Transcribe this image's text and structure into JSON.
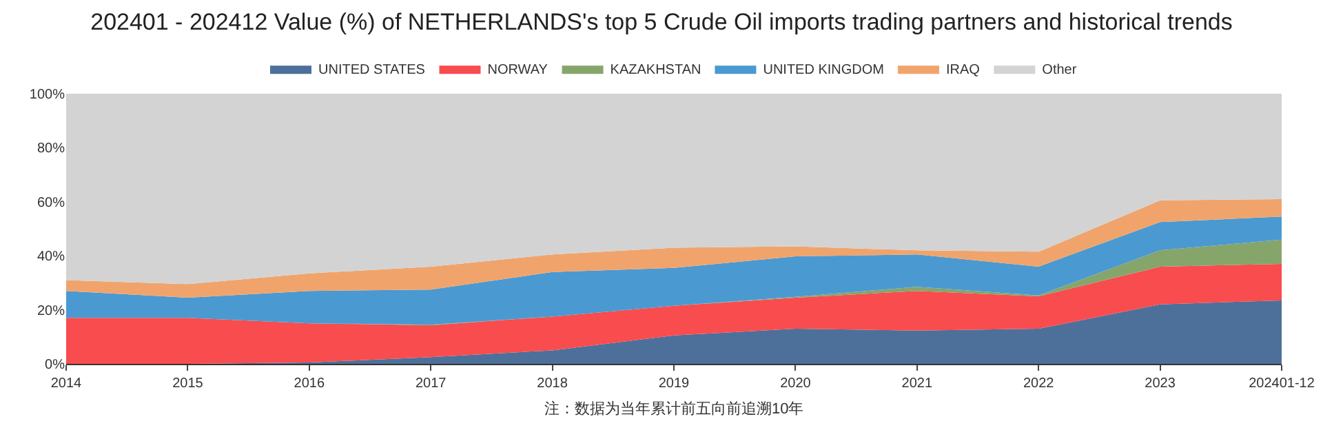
{
  "chart_data": {
    "type": "area",
    "stacked": true,
    "title": "202401 - 202412 Value (%) of NETHERLANDS's top 5 Crude Oil imports trading partners and historical trends",
    "categories": [
      "2014",
      "2015",
      "2016",
      "2017",
      "2018",
      "2019",
      "2020",
      "2021",
      "2022",
      "2023",
      "202401-12"
    ],
    "series": [
      {
        "name": "UNITED STATES",
        "color": "#4d709a",
        "values": [
          0,
          0,
          0.5,
          2.5,
          5,
          10.5,
          13,
          12.3,
          13,
          22,
          23.5
        ]
      },
      {
        "name": "NORWAY",
        "color": "#f84c4f",
        "values": [
          17,
          17,
          14.5,
          11.8,
          12.5,
          11,
          11.5,
          14.7,
          12,
          14,
          13.5
        ]
      },
      {
        "name": "KAZAKHSTAN",
        "color": "#86a56b",
        "values": [
          0,
          0,
          0,
          0.2,
          0,
          0,
          0.3,
          1.5,
          0.3,
          6,
          9
        ]
      },
      {
        "name": "UNITED KINGDOM",
        "color": "#4b99d1",
        "values": [
          10,
          7.5,
          12,
          13,
          16.5,
          14,
          15,
          12,
          10.7,
          10.5,
          8.5
        ]
      },
      {
        "name": "IRAQ",
        "color": "#f0a46c",
        "values": [
          4,
          5,
          6.5,
          8.5,
          6.5,
          7.5,
          3.7,
          1.5,
          5.5,
          8,
          6.5
        ]
      },
      {
        "name": "Other",
        "color": "#d3d3d3",
        "values": [
          69,
          70.5,
          66.5,
          64,
          59.5,
          57,
          56.5,
          58,
          58.5,
          39.5,
          39
        ]
      }
    ],
    "ylim": [
      0,
      100
    ],
    "yticks": [
      {
        "value": 0,
        "label": "0%"
      },
      {
        "value": 20,
        "label": "20%"
      },
      {
        "value": 40,
        "label": "40%"
      },
      {
        "value": 60,
        "label": "60%"
      },
      {
        "value": 80,
        "label": "80%"
      },
      {
        "value": 100,
        "label": "100%"
      }
    ],
    "grid": "y",
    "legend": "top",
    "annotations": [
      "注：数据为当年累计前五向前追溯10年"
    ]
  }
}
